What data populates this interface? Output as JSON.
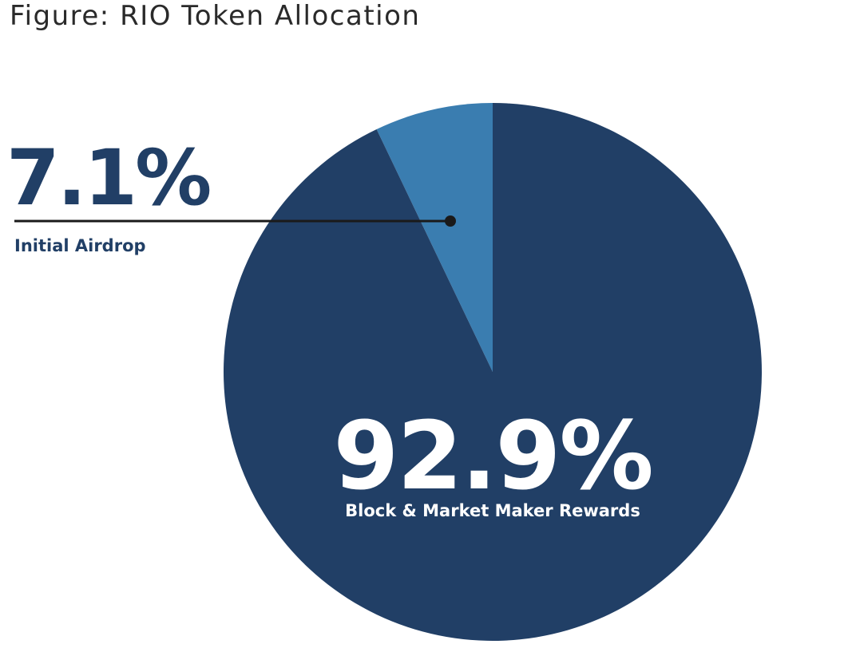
{
  "title": "Figure: RIO Token Allocation",
  "chart_data": {
    "type": "pie",
    "title": "Figure: RIO Token Allocation",
    "slices": [
      {
        "label": "Initial Airdrop",
        "value": 7.1,
        "display": "7.1%",
        "color": "#3a7db0"
      },
      {
        "label": "Block & Market Maker Rewards",
        "value": 92.9,
        "display": "92.9%",
        "color": "#213f66"
      }
    ],
    "start": "12 o'clock",
    "direction": "counterclockwise",
    "legend": "none",
    "annotation_colors": {
      "outside_text": "#213f66",
      "leader_line": "#1a1a1a",
      "inside_text": "#ffffff"
    }
  }
}
